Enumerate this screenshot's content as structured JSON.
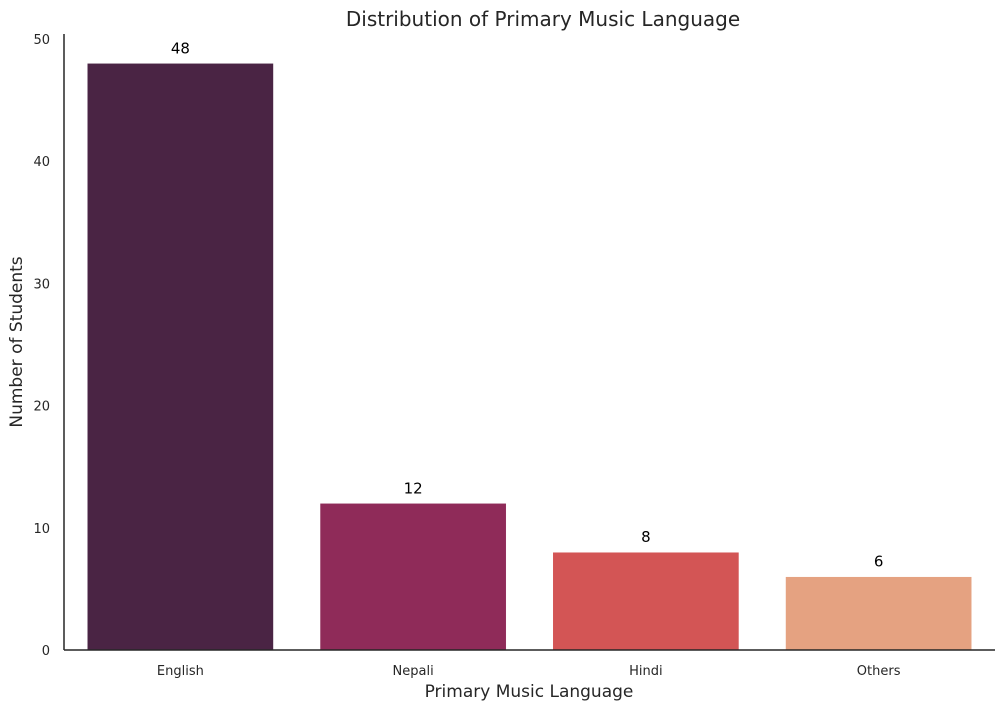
{
  "chart_data": {
    "type": "bar",
    "title": "Distribution of Primary Music Language",
    "xlabel": "Primary Music Language",
    "ylabel": "Number of Students",
    "categories": [
      "English",
      "Nepali",
      "Hindi",
      "Others"
    ],
    "values": [
      48,
      12,
      8,
      6
    ],
    "data_labels": [
      "48",
      "12",
      "8",
      "6"
    ],
    "colors": [
      "#4a2444",
      "#8f2b59",
      "#d35555",
      "#e5a281"
    ],
    "ylim": [
      0,
      50.4
    ],
    "yticks": [
      0,
      10,
      20,
      30,
      40,
      50
    ],
    "ytick_labels": [
      "0",
      "10",
      "20",
      "30",
      "40",
      "50"
    ],
    "grid": false,
    "spines": "left-bottom"
  }
}
